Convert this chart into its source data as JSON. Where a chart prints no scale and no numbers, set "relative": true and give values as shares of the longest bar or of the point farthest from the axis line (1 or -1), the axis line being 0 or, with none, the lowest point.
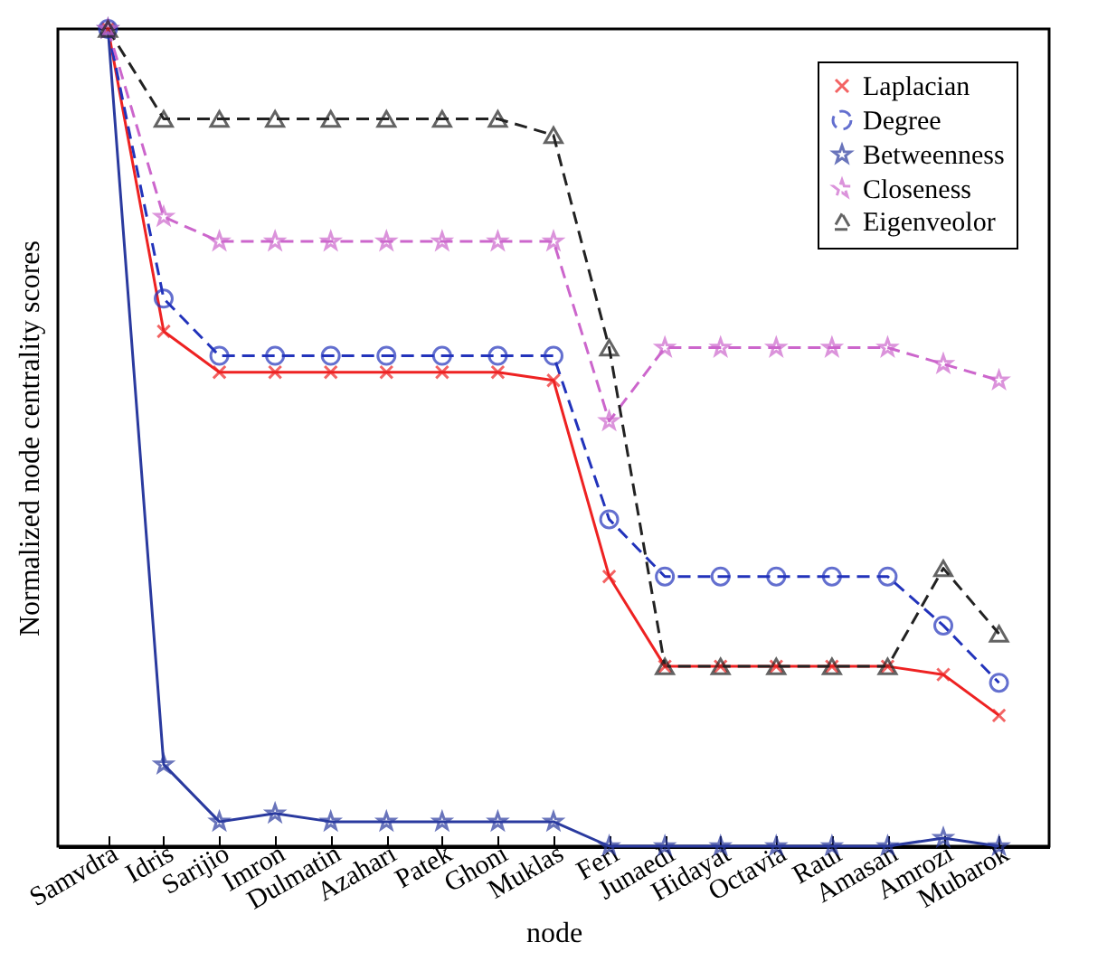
{
  "chart_data": {
    "type": "line",
    "relative": true,
    "xlabel": "node",
    "ylabel": "Normalized node centrality scores",
    "legend": "top right",
    "grid": false,
    "categories": [
      "Samvdra",
      "Idris",
      "Sarijio",
      "Imron",
      "Dulmatin",
      "Azahari",
      "Patek",
      "Ghoni",
      "Muklas",
      "Feri",
      "Junaedi",
      "Hidayat",
      "Octavia",
      "Raul",
      "Amasan",
      "Amrozi",
      "Mubarok"
    ],
    "series": [
      {
        "name": "Laplacian",
        "color": "#ee2222",
        "marker": "cross",
        "line_style": "solid",
        "values": [
          1,
          0.63,
          0.58,
          0.58,
          0.58,
          0.58,
          0.58,
          0.58,
          0.57,
          0.33,
          0.22,
          0.22,
          0.22,
          0.22,
          0.22,
          0.21,
          0.16
        ]
      },
      {
        "name": "Degree",
        "color": "#2233bb",
        "marker": "circle",
        "line_style": "dashed",
        "values": [
          1,
          0.67,
          0.6,
          0.6,
          0.6,
          0.6,
          0.6,
          0.6,
          0.6,
          0.4,
          0.33,
          0.33,
          0.33,
          0.33,
          0.33,
          0.27,
          0.2
        ]
      },
      {
        "name": "Betweenness",
        "color": "#2a3a9f",
        "marker": "star",
        "line_style": "solid",
        "values": [
          1,
          0.1,
          0.03,
          0.04,
          0.03,
          0.03,
          0.03,
          0.03,
          0.03,
          0,
          0,
          0,
          0,
          0,
          0,
          0.01,
          0
        ]
      },
      {
        "name": "Closeness",
        "color": "#cc66cc",
        "marker": "star",
        "line_style": "dashed",
        "values": [
          1,
          0.77,
          0.74,
          0.74,
          0.74,
          0.74,
          0.74,
          0.74,
          0.74,
          0.52,
          0.61,
          0.61,
          0.61,
          0.61,
          0.61,
          0.59,
          0.57
        ]
      },
      {
        "name": "Eigenveolor",
        "color": "#222222",
        "marker": "triangle",
        "line_style": "dashed",
        "values": [
          1,
          0.89,
          0.89,
          0.89,
          0.89,
          0.89,
          0.89,
          0.89,
          0.87,
          0.61,
          0.22,
          0.22,
          0.22,
          0.22,
          0.22,
          0.34,
          0.26
        ]
      }
    ]
  }
}
